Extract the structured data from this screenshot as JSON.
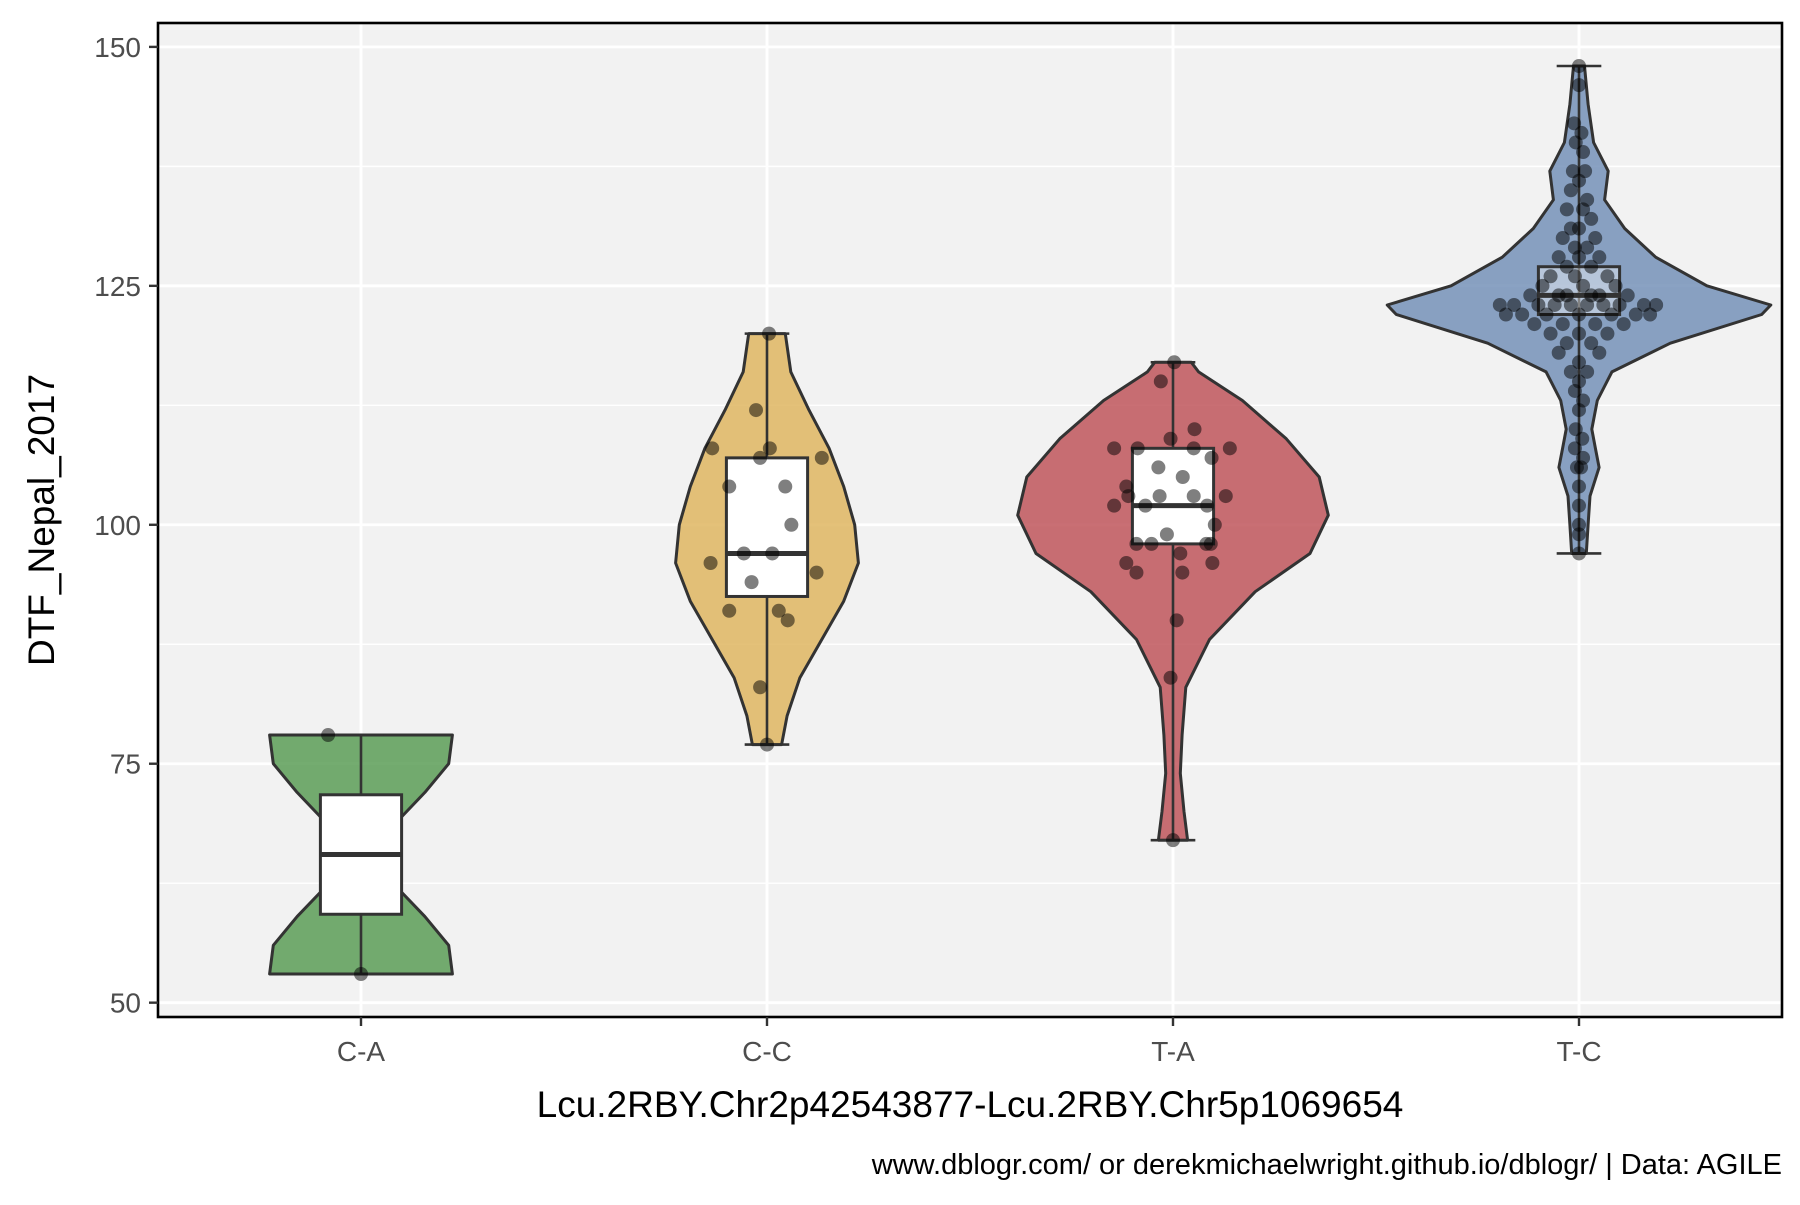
{
  "chart_data": {
    "type": "violin",
    "xlabel": "Lcu.2RBY.Chr2p42543877-Lcu.2RBY.Chr5p1069654",
    "ylabel": "DTF_Nepal_2017",
    "caption": "www.dblogr.com/ or derekmichaelwright.github.io/dblogr/ | Data: AGILE",
    "ylim": [
      48.5,
      152.5
    ],
    "yticks": [
      50,
      75,
      100,
      125,
      150
    ],
    "y_tick_labels": [
      "50",
      "75",
      "100",
      "125",
      "150"
    ],
    "grid": true,
    "categories": [
      "C-A",
      "C-C",
      "T-A",
      "T-C"
    ],
    "groups": [
      {
        "category": "C-A",
        "color": "#5c9e57",
        "box": {
          "q1": 59.25,
          "median": 65.5,
          "q3": 71.75,
          "min": 53,
          "max": 78
        },
        "violin": [
          [
            53,
            0.5
          ],
          [
            56,
            0.48
          ],
          [
            59,
            0.35
          ],
          [
            62,
            0.2
          ],
          [
            65.5,
            0.13
          ],
          [
            69,
            0.2
          ],
          [
            72,
            0.35
          ],
          [
            75,
            0.48
          ],
          [
            78,
            0.5
          ]
        ],
        "points": [
          [
            -0.81,
            78
          ],
          [
            0.0,
            53
          ]
        ]
      },
      {
        "category": "C-C",
        "color": "#dfb662",
        "box": {
          "q1": 92.5,
          "median": 97,
          "q3": 107,
          "min": 77,
          "max": 120
        },
        "violin": [
          [
            77,
            0.08
          ],
          [
            80,
            0.11
          ],
          [
            84,
            0.18
          ],
          [
            88,
            0.3
          ],
          [
            92,
            0.42
          ],
          [
            96,
            0.5
          ],
          [
            100,
            0.48
          ],
          [
            104,
            0.42
          ],
          [
            108,
            0.34
          ],
          [
            112,
            0.23
          ],
          [
            116,
            0.13
          ],
          [
            120,
            0.1
          ]
        ],
        "points": [
          [
            -1.35,
            108
          ],
          [
            -1.39,
            96
          ],
          [
            -0.93,
            104
          ],
          [
            -0.93,
            91
          ],
          [
            -0.57,
            97
          ],
          [
            -0.38,
            94
          ],
          [
            -0.27,
            112
          ],
          [
            -0.17,
            107
          ],
          [
            -0.17,
            83
          ],
          [
            0.0,
            77
          ],
          [
            0.05,
            120
          ],
          [
            0.07,
            108
          ],
          [
            0.13,
            97
          ],
          [
            0.29,
            91
          ],
          [
            0.45,
            104
          ],
          [
            0.51,
            90
          ],
          [
            0.6,
            100
          ],
          [
            1.22,
            95
          ],
          [
            1.35,
            107
          ]
        ]
      },
      {
        "category": "T-A",
        "color": "#c0565c",
        "box": {
          "q1": 98,
          "median": 102,
          "q3": 108,
          "min": 67,
          "max": 117
        },
        "violin": [
          [
            67,
            0.08
          ],
          [
            70,
            0.06
          ],
          [
            74,
            0.04
          ],
          [
            78,
            0.05
          ],
          [
            83,
            0.07
          ],
          [
            88,
            0.2
          ],
          [
            93,
            0.45
          ],
          [
            97,
            0.75
          ],
          [
            101,
            0.85
          ],
          [
            105,
            0.8
          ],
          [
            109,
            0.62
          ],
          [
            113,
            0.38
          ],
          [
            116,
            0.14
          ],
          [
            117,
            0.1
          ]
        ],
        "points": [
          [
            -1.45,
            108
          ],
          [
            -1.45,
            102
          ],
          [
            -1.15,
            96
          ],
          [
            -1.15,
            104
          ],
          [
            -1.1,
            103
          ],
          [
            -0.9,
            95
          ],
          [
            -0.87,
            108
          ],
          [
            -0.9,
            98
          ],
          [
            -0.68,
            102
          ],
          [
            -0.53,
            98
          ],
          [
            -0.36,
            106
          ],
          [
            -0.3,
            115
          ],
          [
            -0.33,
            103
          ],
          [
            -0.15,
            99
          ],
          [
            -0.06,
            109
          ],
          [
            -0.06,
            84
          ],
          [
            0.0,
            67
          ],
          [
            0.03,
            117
          ],
          [
            0.09,
            90
          ],
          [
            0.18,
            97
          ],
          [
            0.23,
            95
          ],
          [
            0.24,
            105
          ],
          [
            0.51,
            108
          ],
          [
            0.51,
            103
          ],
          [
            0.53,
            110
          ],
          [
            0.82,
            98
          ],
          [
            0.84,
            102
          ],
          [
            0.93,
            98
          ],
          [
            0.95,
            107
          ],
          [
            0.97,
            96
          ],
          [
            1.03,
            100
          ],
          [
            1.3,
            103
          ],
          [
            1.4,
            108
          ]
        ]
      },
      {
        "category": "T-C",
        "color": "#7592b8",
        "box": {
          "q1": 122,
          "median": 124,
          "q3": 127,
          "min": 97,
          "max": 148
        },
        "violin": [
          [
            97,
            0.04
          ],
          [
            100,
            0.05
          ],
          [
            103,
            0.06
          ],
          [
            106,
            0.11
          ],
          [
            108,
            0.09
          ],
          [
            110,
            0.07
          ],
          [
            113,
            0.1
          ],
          [
            116,
            0.18
          ],
          [
            119,
            0.5
          ],
          [
            122,
            1.0
          ],
          [
            123,
            1.05
          ],
          [
            125,
            0.7
          ],
          [
            128,
            0.42
          ],
          [
            131,
            0.25
          ],
          [
            134,
            0.14
          ],
          [
            137,
            0.16
          ],
          [
            140,
            0.08
          ],
          [
            144,
            0.05
          ],
          [
            148,
            0.03
          ]
        ],
        "points": [
          [
            0.0,
            148
          ],
          [
            0.0,
            146
          ],
          [
            -0.12,
            142
          ],
          [
            0.06,
            141
          ],
          [
            -0.08,
            140
          ],
          [
            0.1,
            139
          ],
          [
            -0.15,
            137
          ],
          [
            0.15,
            137
          ],
          [
            0.0,
            136
          ],
          [
            -0.2,
            135
          ],
          [
            0.2,
            134
          ],
          [
            -0.3,
            133
          ],
          [
            0.1,
            133
          ],
          [
            0.3,
            132
          ],
          [
            -0.2,
            131
          ],
          [
            0.0,
            131
          ],
          [
            -0.4,
            130
          ],
          [
            0.4,
            130
          ],
          [
            -0.1,
            129
          ],
          [
            0.2,
            129
          ],
          [
            -0.5,
            128
          ],
          [
            0.5,
            128
          ],
          [
            0.0,
            128
          ],
          [
            -0.3,
            127
          ],
          [
            0.3,
            127
          ],
          [
            -0.7,
            126
          ],
          [
            0.7,
            126
          ],
          [
            -0.1,
            126
          ],
          [
            0.1,
            125
          ],
          [
            -0.9,
            125
          ],
          [
            0.9,
            125
          ],
          [
            -0.5,
            124
          ],
          [
            0.5,
            124
          ],
          [
            -1.2,
            124
          ],
          [
            1.2,
            124
          ],
          [
            -0.3,
            124
          ],
          [
            0.3,
            124
          ],
          [
            -1.6,
            123
          ],
          [
            1.6,
            123
          ],
          [
            -1.0,
            123
          ],
          [
            1.0,
            123
          ],
          [
            -0.6,
            123
          ],
          [
            0.6,
            123
          ],
          [
            -0.2,
            123
          ],
          [
            0.2,
            123
          ],
          [
            -1.95,
            123
          ],
          [
            1.9,
            123
          ],
          [
            -1.4,
            122
          ],
          [
            1.4,
            122
          ],
          [
            -0.8,
            122
          ],
          [
            0.8,
            122
          ],
          [
            0.0,
            122
          ],
          [
            -1.8,
            122
          ],
          [
            1.75,
            122
          ],
          [
            -1.1,
            121
          ],
          [
            1.1,
            121
          ],
          [
            -0.4,
            121
          ],
          [
            0.4,
            121
          ],
          [
            -0.7,
            120
          ],
          [
            0.7,
            120
          ],
          [
            0.0,
            120
          ],
          [
            -0.3,
            119
          ],
          [
            0.3,
            119
          ],
          [
            -0.5,
            118
          ],
          [
            0.5,
            118
          ],
          [
            0.0,
            117
          ],
          [
            -0.2,
            116
          ],
          [
            0.2,
            116
          ],
          [
            0.0,
            115
          ],
          [
            -0.1,
            114
          ],
          [
            0.1,
            113
          ],
          [
            0.0,
            112
          ],
          [
            -0.08,
            110
          ],
          [
            0.08,
            109
          ],
          [
            -0.1,
            108
          ],
          [
            0.1,
            107
          ],
          [
            -0.05,
            106
          ],
          [
            0.05,
            106
          ],
          [
            0.0,
            104
          ],
          [
            0.0,
            102
          ],
          [
            0.0,
            100
          ],
          [
            0.0,
            99
          ],
          [
            0.0,
            97
          ]
        ]
      }
    ]
  }
}
